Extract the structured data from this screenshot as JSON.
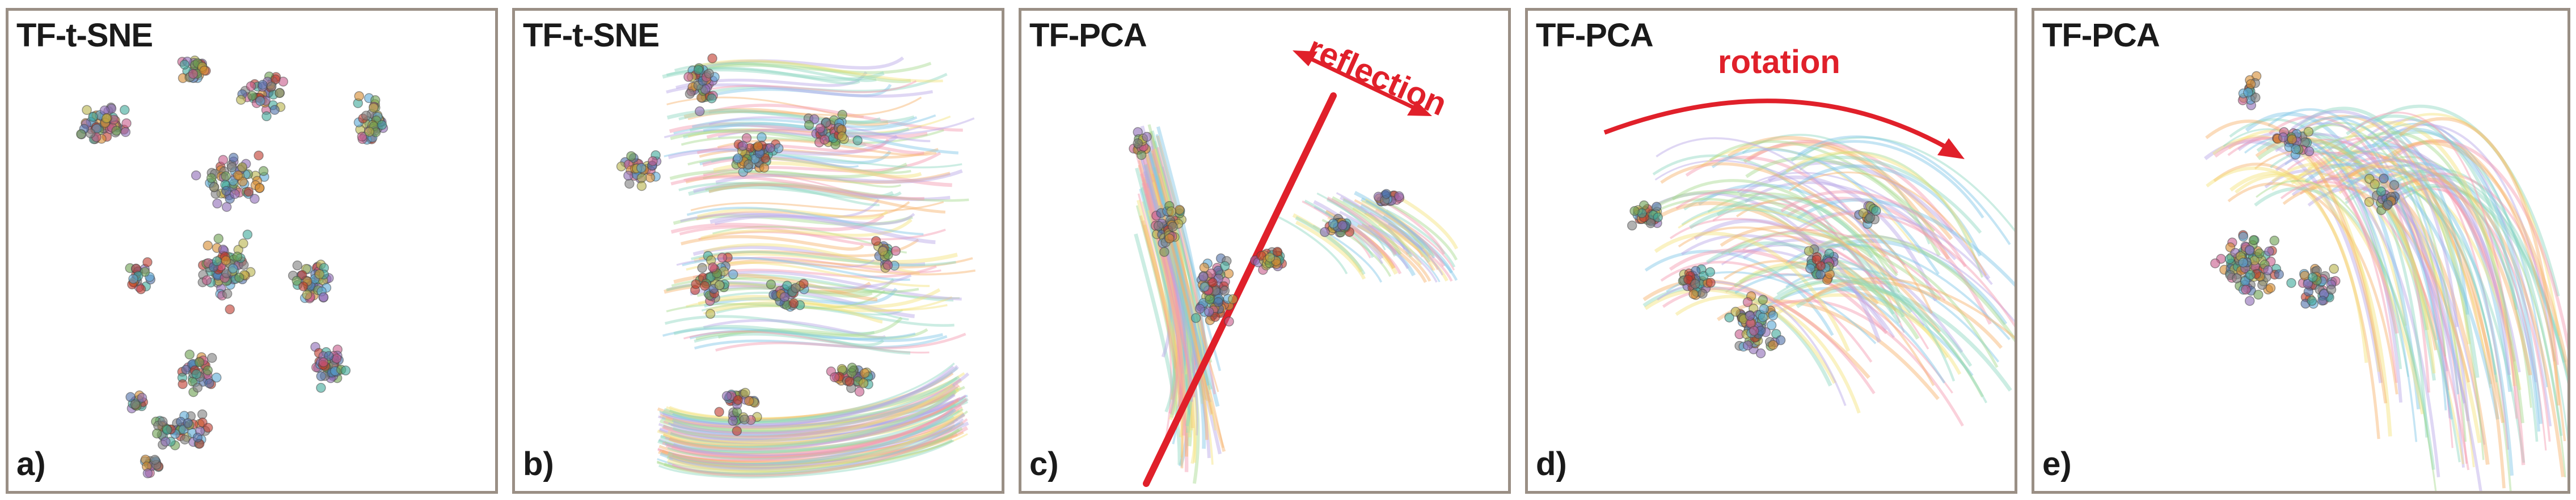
{
  "panels": [
    {
      "title": "TF-t-SNE",
      "label": "a)"
    },
    {
      "title": "TF-t-SNE",
      "label": "b)"
    },
    {
      "title": "TF-PCA",
      "label": "c)",
      "annotation": "reflection"
    },
    {
      "title": "TF-PCA",
      "label": "d)",
      "annotation": "rotation"
    },
    {
      "title": "TF-PCA",
      "label": "e)"
    }
  ],
  "colors": {
    "annotation": "#e0202a",
    "frame": "#9a8f85",
    "palette": [
      "#4f6fa8",
      "#c0392b",
      "#6a9f4f",
      "#8e6bb5",
      "#d68a2e",
      "#3ea99a",
      "#7f7f7f",
      "#c75a8a",
      "#b7b34a",
      "#5aa9d6"
    ],
    "trails": [
      "#8fd6c1",
      "#f7b26b",
      "#b9a7e6",
      "#7fc6e6",
      "#f39ab0",
      "#f5e27a",
      "#a7d98f"
    ]
  }
}
